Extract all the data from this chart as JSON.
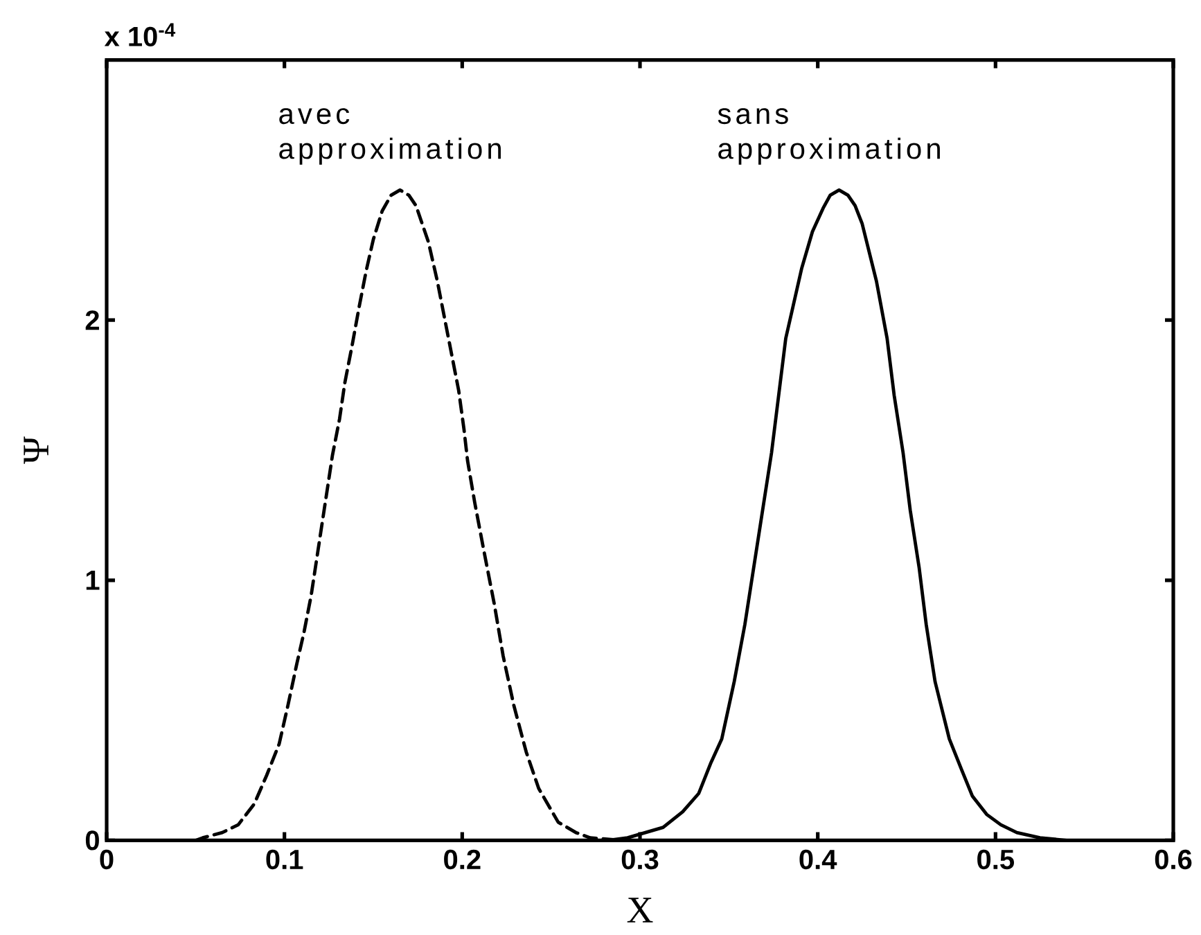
{
  "chart_data": {
    "type": "line",
    "xlabel": "X",
    "ylabel": "Ψ",
    "annotations": [
      "x 10$^{-4}$"
    ],
    "xlim": [
      0,
      0.6
    ],
    "ylim": [
      0,
      3
    ],
    "xticks": [
      0,
      0.1,
      0.2,
      0.3,
      0.4,
      0.5,
      0.6
    ],
    "yticks": [
      0,
      1,
      2
    ],
    "series": [
      {
        "name": "avec approximation",
        "color": "#000000",
        "line_style": "dashed",
        "x": [
          0.05,
          0.054,
          0.065,
          0.074,
          0.083,
          0.09,
          0.097,
          0.102,
          0.107,
          0.111,
          0.115,
          0.119,
          0.123,
          0.127,
          0.131,
          0.134,
          0.138,
          0.142,
          0.146,
          0.15,
          0.155,
          0.16,
          0.165,
          0.17,
          0.174,
          0.181,
          0.186,
          0.19,
          0.194,
          0.198,
          0.201,
          0.203,
          0.207,
          0.212,
          0.218,
          0.223,
          0.229,
          0.236,
          0.243,
          0.254,
          0.264,
          0.272,
          0.29
        ],
        "values": [
          0,
          0.01,
          0.03,
          0.06,
          0.14,
          0.25,
          0.37,
          0.52,
          0.68,
          0.8,
          0.94,
          1.12,
          1.3,
          1.48,
          1.62,
          1.76,
          1.9,
          2.05,
          2.19,
          2.31,
          2.42,
          2.48,
          2.5,
          2.48,
          2.44,
          2.3,
          2.15,
          2.01,
          1.87,
          1.73,
          1.58,
          1.46,
          1.3,
          1.12,
          0.91,
          0.71,
          0.52,
          0.34,
          0.2,
          0.07,
          0.03,
          0.01,
          0
        ]
      },
      {
        "name": "sans approximation",
        "color": "#000000",
        "line_style": "solid",
        "x": [
          0.282,
          0.293,
          0.303,
          0.313,
          0.324,
          0.333,
          0.34,
          0.346,
          0.353,
          0.359,
          0.364,
          0.369,
          0.374,
          0.378,
          0.382,
          0.386,
          0.391,
          0.397,
          0.403,
          0.407,
          0.412,
          0.417,
          0.421,
          0.425,
          0.433,
          0.439,
          0.443,
          0.448,
          0.452,
          0.457,
          0.461,
          0.466,
          0.474,
          0.481,
          0.487,
          0.495,
          0.503,
          0.512,
          0.525,
          0.54,
          0.6
        ],
        "values": [
          0,
          0.01,
          0.03,
          0.05,
          0.11,
          0.18,
          0.3,
          0.39,
          0.61,
          0.83,
          1.05,
          1.27,
          1.49,
          1.71,
          1.93,
          2.05,
          2.2,
          2.34,
          2.43,
          2.48,
          2.5,
          2.48,
          2.44,
          2.37,
          2.15,
          1.93,
          1.71,
          1.49,
          1.27,
          1.05,
          0.83,
          0.61,
          0.39,
          0.27,
          0.17,
          0.1,
          0.06,
          0.03,
          0.01,
          0,
          0
        ]
      }
    ]
  }
}
